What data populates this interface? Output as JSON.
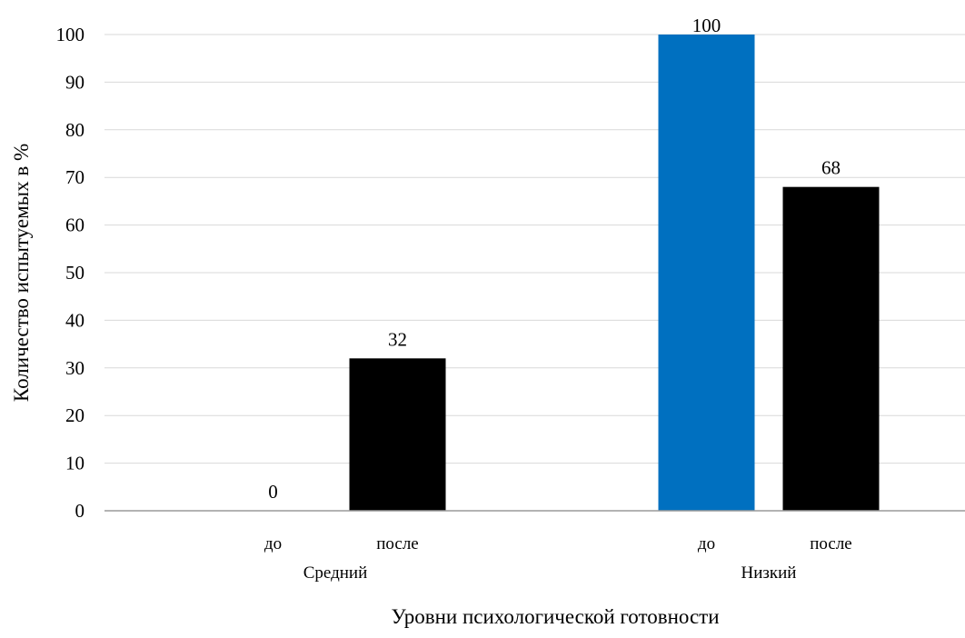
{
  "chart_data": {
    "type": "bar",
    "xlabel": "Уровни психологической готовности",
    "ylabel": "Количество испытуемых в %",
    "ylim": [
      0,
      100
    ],
    "yticks": [
      0,
      10,
      20,
      30,
      40,
      50,
      60,
      70,
      80,
      90,
      100
    ],
    "grid": true,
    "groups": [
      {
        "name": "Средний",
        "bars": [
          {
            "label": "до",
            "value": 0,
            "color": "#0070C0"
          },
          {
            "label": "после",
            "value": 32,
            "color": "#000000"
          }
        ]
      },
      {
        "name": "Низкий",
        "bars": [
          {
            "label": "до",
            "value": 100,
            "color": "#0070C0"
          },
          {
            "label": "после",
            "value": 68,
            "color": "#000000"
          }
        ]
      }
    ]
  }
}
